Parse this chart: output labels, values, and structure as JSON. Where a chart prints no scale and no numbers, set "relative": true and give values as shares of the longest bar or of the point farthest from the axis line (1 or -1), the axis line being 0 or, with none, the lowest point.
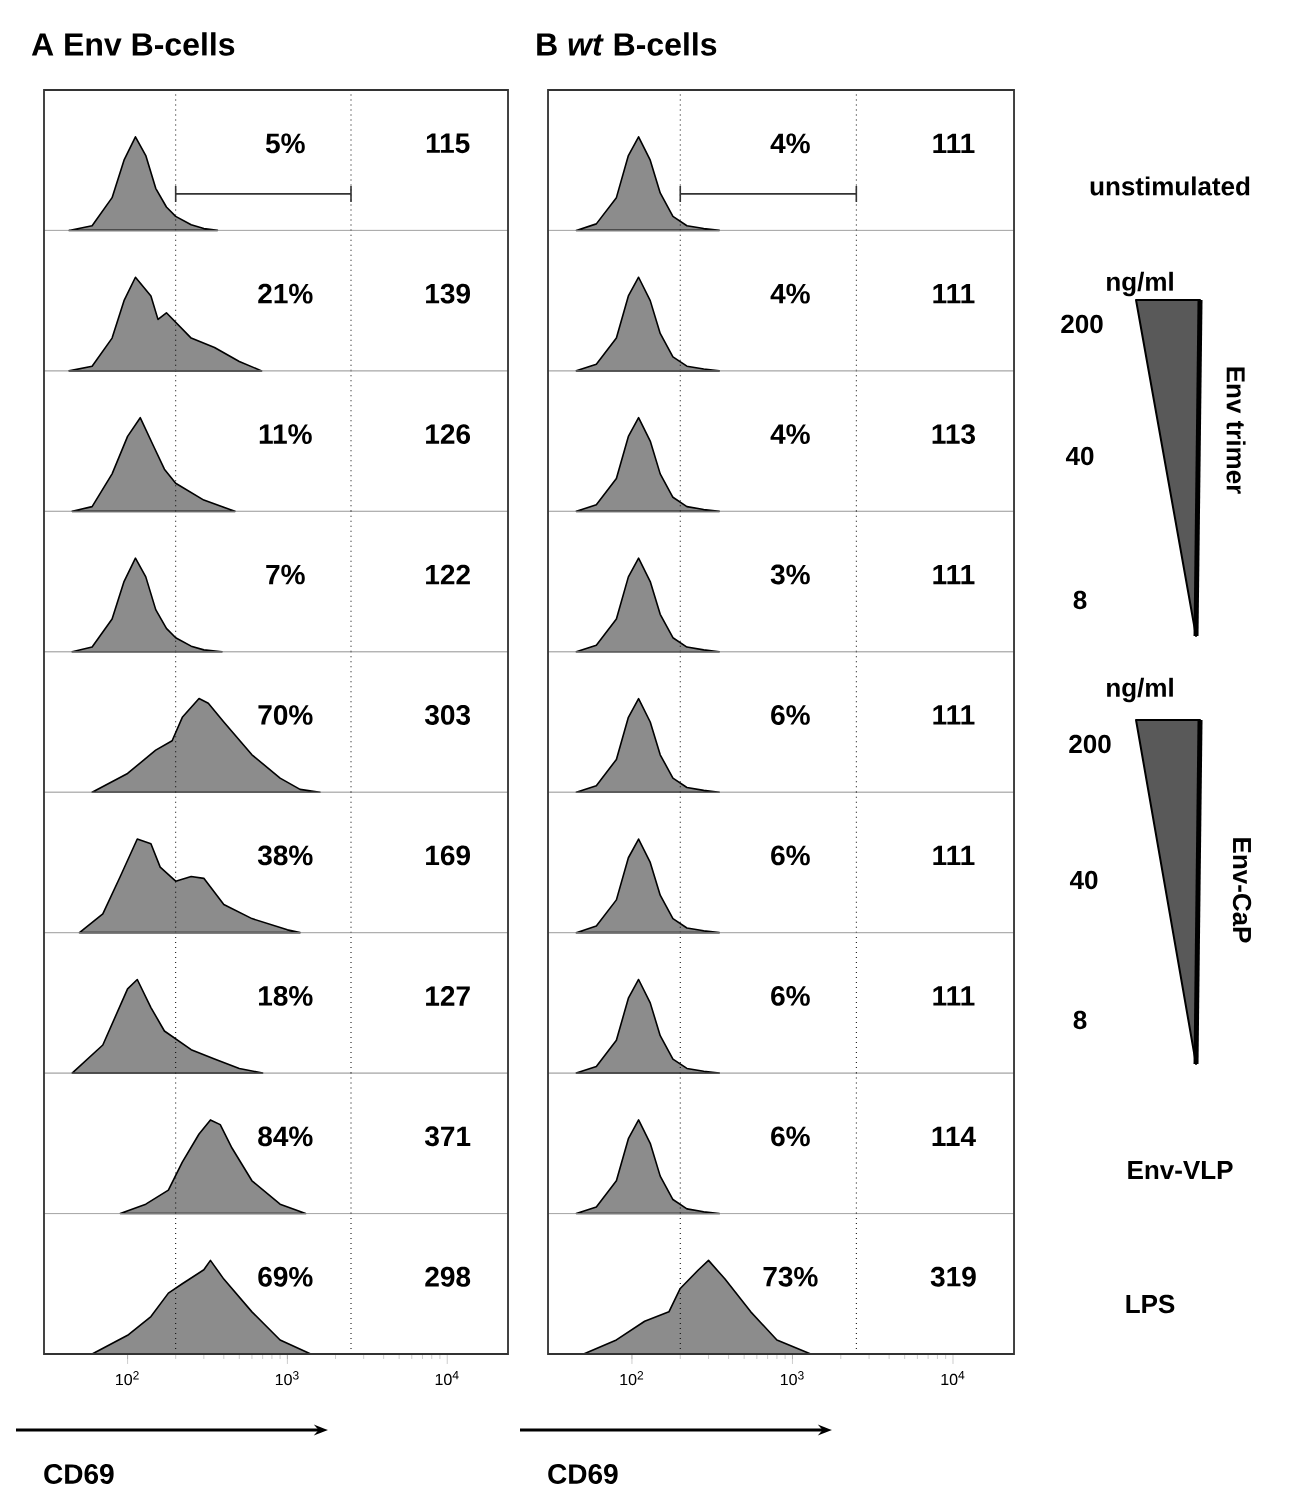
{
  "chart_data": [
    {
      "type": "area",
      "relative": true,
      "log": "x",
      "title": "A Env B-cells",
      "xlim": [
        30,
        24000
      ],
      "x": [
        43,
        60,
        80,
        95,
        112,
        130,
        150,
        175,
        200,
        250,
        300,
        365
      ],
      "series": [
        {
          "color": "#8c8c8c",
          "values": [
            0,
            0.05,
            0.35,
            0.75,
            1,
            0.8,
            0.45,
            0.25,
            0.15,
            0.06,
            0.02,
            0
          ]
        }
      ],
      "ref_lines": [
        {
          "axis": "x",
          "value": 200,
          "line_style": "dotted",
          "color": "#000000"
        },
        {
          "axis": "x",
          "value": 2500,
          "line_style": "dotted",
          "color": "#000000"
        }
      ],
      "annotations": [
        "5%",
        "115"
      ]
    },
    {
      "type": "area",
      "relative": true,
      "log": "x",
      "xlim": [
        30,
        24000
      ],
      "x": [
        43,
        60,
        80,
        95,
        112,
        140,
        155,
        175,
        250,
        350,
        500,
        690
      ],
      "series": [
        {
          "color": "#8c8c8c",
          "values": [
            0,
            0.05,
            0.35,
            0.75,
            1,
            0.8,
            0.55,
            0.62,
            0.35,
            0.25,
            0.1,
            0
          ]
        }
      ],
      "ref_lines": [
        {
          "axis": "x",
          "value": 200,
          "line_style": "dotted",
          "color": "#000000"
        },
        {
          "axis": "x",
          "value": 2500,
          "line_style": "dotted",
          "color": "#000000"
        }
      ],
      "annotations": [
        "21%",
        "139"
      ]
    },
    {
      "type": "area",
      "relative": true,
      "log": "x",
      "xlim": [
        30,
        24000
      ],
      "x": [
        45,
        60,
        80,
        100,
        120,
        145,
        170,
        200,
        300,
        470
      ],
      "series": [
        {
          "color": "#8c8c8c",
          "values": [
            0,
            0.05,
            0.4,
            0.8,
            1,
            0.7,
            0.45,
            0.3,
            0.12,
            0
          ]
        }
      ],
      "ref_lines": [
        {
          "axis": "x",
          "value": 200,
          "line_style": "dotted",
          "color": "#000000"
        },
        {
          "axis": "x",
          "value": 2500,
          "line_style": "dotted",
          "color": "#000000"
        }
      ],
      "annotations": [
        "11%",
        "126"
      ]
    },
    {
      "type": "area",
      "relative": true,
      "log": "x",
      "xlim": [
        30,
        24000
      ],
      "x": [
        45,
        60,
        80,
        95,
        112,
        130,
        150,
        175,
        200,
        250,
        300,
        390
      ],
      "series": [
        {
          "color": "#8c8c8c",
          "values": [
            0,
            0.05,
            0.35,
            0.75,
            1,
            0.8,
            0.45,
            0.25,
            0.15,
            0.06,
            0.02,
            0
          ]
        }
      ],
      "ref_lines": [
        {
          "axis": "x",
          "value": 200,
          "line_style": "dotted",
          "color": "#000000"
        },
        {
          "axis": "x",
          "value": 2500,
          "line_style": "dotted",
          "color": "#000000"
        }
      ],
      "annotations": [
        "7%",
        "122"
      ]
    },
    {
      "type": "area",
      "relative": true,
      "log": "x",
      "xlim": [
        30,
        24000
      ],
      "x": [
        60,
        100,
        150,
        190,
        220,
        280,
        320,
        400,
        600,
        900,
        1200,
        1600
      ],
      "series": [
        {
          "color": "#8c8c8c",
          "values": [
            0,
            0.2,
            0.45,
            0.55,
            0.8,
            1,
            0.95,
            0.75,
            0.4,
            0.15,
            0.03,
            0
          ]
        }
      ],
      "ref_lines": [
        {
          "axis": "x",
          "value": 200,
          "line_style": "dotted",
          "color": "#000000"
        },
        {
          "axis": "x",
          "value": 2500,
          "line_style": "dotted",
          "color": "#000000"
        }
      ],
      "annotations": [
        "70%",
        "303"
      ]
    },
    {
      "type": "area",
      "relative": true,
      "log": "x",
      "xlim": [
        30,
        24000
      ],
      "x": [
        50,
        70,
        90,
        115,
        140,
        160,
        200,
        250,
        300,
        400,
        600,
        1000,
        1200
      ],
      "series": [
        {
          "color": "#8c8c8c",
          "values": [
            0,
            0.2,
            0.6,
            1,
            0.95,
            0.7,
            0.55,
            0.6,
            0.58,
            0.3,
            0.15,
            0.03,
            0
          ]
        }
      ],
      "ref_lines": [
        {
          "axis": "x",
          "value": 200,
          "line_style": "dotted",
          "color": "#000000"
        },
        {
          "axis": "x",
          "value": 2500,
          "line_style": "dotted",
          "color": "#000000"
        }
      ],
      "annotations": [
        "38%",
        "169"
      ]
    },
    {
      "type": "area",
      "relative": true,
      "log": "x",
      "xlim": [
        30,
        24000
      ],
      "x": [
        45,
        70,
        100,
        115,
        140,
        170,
        250,
        350,
        500,
        700
      ],
      "series": [
        {
          "color": "#8c8c8c",
          "values": [
            0,
            0.3,
            0.9,
            1,
            0.7,
            0.45,
            0.25,
            0.15,
            0.05,
            0
          ]
        }
      ],
      "ref_lines": [
        {
          "axis": "x",
          "value": 200,
          "line_style": "dotted",
          "color": "#000000"
        },
        {
          "axis": "x",
          "value": 2500,
          "line_style": "dotted",
          "color": "#000000"
        }
      ],
      "annotations": [
        "18%",
        "127"
      ]
    },
    {
      "type": "area",
      "relative": true,
      "log": "x",
      "xlim": [
        30,
        24000
      ],
      "x": [
        90,
        130,
        180,
        220,
        280,
        330,
        380,
        450,
        600,
        900,
        1300
      ],
      "series": [
        {
          "color": "#8c8c8c",
          "values": [
            0,
            0.1,
            0.25,
            0.55,
            0.85,
            1,
            0.95,
            0.7,
            0.35,
            0.1,
            0
          ]
        }
      ],
      "ref_lines": [
        {
          "axis": "x",
          "value": 200,
          "line_style": "dotted",
          "color": "#000000"
        },
        {
          "axis": "x",
          "value": 2500,
          "line_style": "dotted",
          "color": "#000000"
        }
      ],
      "annotations": [
        "84%",
        "371"
      ]
    },
    {
      "type": "area",
      "relative": true,
      "log": "x",
      "xlim": [
        30,
        24000
      ],
      "xticks": [
        {
          "value": 100,
          "label": "10$^{2}$"
        },
        {
          "value": 1000,
          "label": "10$^{3}$"
        },
        {
          "value": 10000,
          "label": "10$^{4}$"
        }
      ],
      "xlabel": "CD69",
      "x": [
        60,
        100,
        140,
        180,
        220,
        300,
        330,
        400,
        600,
        900,
        1400
      ],
      "series": [
        {
          "color": "#8c8c8c",
          "values": [
            0,
            0.2,
            0.4,
            0.65,
            0.75,
            0.9,
            1,
            0.8,
            0.45,
            0.15,
            0
          ]
        }
      ],
      "ref_lines": [
        {
          "axis": "x",
          "value": 200,
          "line_style": "dotted",
          "color": "#000000"
        },
        {
          "axis": "x",
          "value": 2500,
          "line_style": "dotted",
          "color": "#000000"
        }
      ],
      "annotations": [
        "69%",
        "298"
      ]
    },
    {
      "type": "area",
      "relative": true,
      "log": "x",
      "title": "B *wt* B-cells",
      "xlim": [
        30,
        24000
      ],
      "x": [
        45,
        60,
        80,
        95,
        110,
        130,
        150,
        180,
        220,
        280,
        350
      ],
      "series": [
        {
          "color": "#8c8c8c",
          "values": [
            0,
            0.07,
            0.35,
            0.8,
            1,
            0.75,
            0.4,
            0.15,
            0.05,
            0.02,
            0
          ]
        }
      ],
      "ref_lines": [
        {
          "axis": "x",
          "value": 200,
          "line_style": "dotted",
          "color": "#000000"
        },
        {
          "axis": "x",
          "value": 2500,
          "line_style": "dotted",
          "color": "#000000"
        }
      ],
      "annotations": [
        "4%",
        "111"
      ]
    },
    {
      "type": "area",
      "relative": true,
      "log": "x",
      "xlim": [
        30,
        24000
      ],
      "x": [
        45,
        60,
        80,
        95,
        110,
        130,
        150,
        180,
        220,
        280,
        350
      ],
      "series": [
        {
          "color": "#8c8c8c",
          "values": [
            0,
            0.07,
            0.35,
            0.8,
            1,
            0.75,
            0.4,
            0.15,
            0.05,
            0.02,
            0
          ]
        }
      ],
      "ref_lines": [
        {
          "axis": "x",
          "value": 200,
          "line_style": "dotted",
          "color": "#000000"
        },
        {
          "axis": "x",
          "value": 2500,
          "line_style": "dotted",
          "color": "#000000"
        }
      ],
      "annotations": [
        "4%",
        "111"
      ]
    },
    {
      "type": "area",
      "relative": true,
      "log": "x",
      "xlim": [
        30,
        24000
      ],
      "x": [
        45,
        60,
        80,
        95,
        110,
        130,
        150,
        180,
        220,
        280,
        350
      ],
      "series": [
        {
          "color": "#8c8c8c",
          "values": [
            0,
            0.07,
            0.35,
            0.8,
            1,
            0.75,
            0.4,
            0.15,
            0.05,
            0.02,
            0
          ]
        }
      ],
      "ref_lines": [
        {
          "axis": "x",
          "value": 200,
          "line_style": "dotted",
          "color": "#000000"
        },
        {
          "axis": "x",
          "value": 2500,
          "line_style": "dotted",
          "color": "#000000"
        }
      ],
      "annotations": [
        "4%",
        "113"
      ]
    },
    {
      "type": "area",
      "relative": true,
      "log": "x",
      "xlim": [
        30,
        24000
      ],
      "x": [
        45,
        60,
        80,
        95,
        110,
        130,
        150,
        180,
        220,
        280,
        350
      ],
      "series": [
        {
          "color": "#8c8c8c",
          "values": [
            0,
            0.07,
            0.35,
            0.8,
            1,
            0.75,
            0.4,
            0.15,
            0.05,
            0.02,
            0
          ]
        }
      ],
      "ref_lines": [
        {
          "axis": "x",
          "value": 200,
          "line_style": "dotted",
          "color": "#000000"
        },
        {
          "axis": "x",
          "value": 2500,
          "line_style": "dotted",
          "color": "#000000"
        }
      ],
      "annotations": [
        "3%",
        "111"
      ]
    },
    {
      "type": "area",
      "relative": true,
      "log": "x",
      "xlim": [
        30,
        24000
      ],
      "x": [
        45,
        60,
        80,
        95,
        110,
        130,
        150,
        180,
        220,
        280,
        350
      ],
      "series": [
        {
          "color": "#8c8c8c",
          "values": [
            0,
            0.07,
            0.35,
            0.8,
            1,
            0.75,
            0.4,
            0.15,
            0.05,
            0.02,
            0
          ]
        }
      ],
      "ref_lines": [
        {
          "axis": "x",
          "value": 200,
          "line_style": "dotted",
          "color": "#000000"
        },
        {
          "axis": "x",
          "value": 2500,
          "line_style": "dotted",
          "color": "#000000"
        }
      ],
      "annotations": [
        "6%",
        "111"
      ]
    },
    {
      "type": "area",
      "relative": true,
      "log": "x",
      "xlim": [
        30,
        24000
      ],
      "x": [
        45,
        60,
        80,
        95,
        110,
        130,
        150,
        180,
        220,
        280,
        350
      ],
      "series": [
        {
          "color": "#8c8c8c",
          "values": [
            0,
            0.07,
            0.35,
            0.8,
            1,
            0.75,
            0.4,
            0.15,
            0.05,
            0.02,
            0
          ]
        }
      ],
      "ref_lines": [
        {
          "axis": "x",
          "value": 200,
          "line_style": "dotted",
          "color": "#000000"
        },
        {
          "axis": "x",
          "value": 2500,
          "line_style": "dotted",
          "color": "#000000"
        }
      ],
      "annotations": [
        "6%",
        "111"
      ]
    },
    {
      "type": "area",
      "relative": true,
      "log": "x",
      "xlim": [
        30,
        24000
      ],
      "x": [
        45,
        60,
        80,
        95,
        110,
        130,
        150,
        180,
        220,
        280,
        350
      ],
      "series": [
        {
          "color": "#8c8c8c",
          "values": [
            0,
            0.07,
            0.35,
            0.8,
            1,
            0.75,
            0.4,
            0.15,
            0.05,
            0.02,
            0
          ]
        }
      ],
      "ref_lines": [
        {
          "axis": "x",
          "value": 200,
          "line_style": "dotted",
          "color": "#000000"
        },
        {
          "axis": "x",
          "value": 2500,
          "line_style": "dotted",
          "color": "#000000"
        }
      ],
      "annotations": [
        "6%",
        "111"
      ]
    },
    {
      "type": "area",
      "relative": true,
      "log": "x",
      "xlim": [
        30,
        24000
      ],
      "x": [
        45,
        60,
        80,
        95,
        110,
        130,
        150,
        180,
        220,
        280,
        350
      ],
      "series": [
        {
          "color": "#8c8c8c",
          "values": [
            0,
            0.07,
            0.35,
            0.8,
            1,
            0.75,
            0.4,
            0.15,
            0.05,
            0.02,
            0
          ]
        }
      ],
      "ref_lines": [
        {
          "axis": "x",
          "value": 200,
          "line_style": "dotted",
          "color": "#000000"
        },
        {
          "axis": "x",
          "value": 2500,
          "line_style": "dotted",
          "color": "#000000"
        }
      ],
      "annotations": [
        "6%",
        "114"
      ]
    },
    {
      "type": "area",
      "relative": true,
      "log": "x",
      "xlim": [
        30,
        24000
      ],
      "xticks": [
        {
          "value": 100,
          "label": "10$^{2}$"
        },
        {
          "value": 1000,
          "label": "10$^{3}$"
        },
        {
          "value": 10000,
          "label": "10$^{4}$"
        }
      ],
      "xlabel": "CD69",
      "x": [
        50,
        80,
        120,
        170,
        200,
        260,
        300,
        380,
        550,
        800,
        1300
      ],
      "series": [
        {
          "color": "#8c8c8c",
          "values": [
            0,
            0.15,
            0.35,
            0.45,
            0.7,
            0.9,
            1,
            0.8,
            0.45,
            0.15,
            0
          ]
        }
      ],
      "ref_lines": [
        {
          "axis": "x",
          "value": 200,
          "line_style": "dotted",
          "color": "#000000"
        },
        {
          "axis": "x",
          "value": 2500,
          "line_style": "dotted",
          "color": "#000000"
        }
      ],
      "annotations": [
        "73%",
        "319"
      ]
    },
    {
      "type": "other",
      "annotations": [
        "unstimulated",
        "ng/ml",
        "200",
        "Env trimer",
        "40",
        "8",
        "ng/ml",
        "200",
        "Env-CaP",
        "40",
        "8",
        "Env-VLP",
        "LPS"
      ]
    }
  ]
}
